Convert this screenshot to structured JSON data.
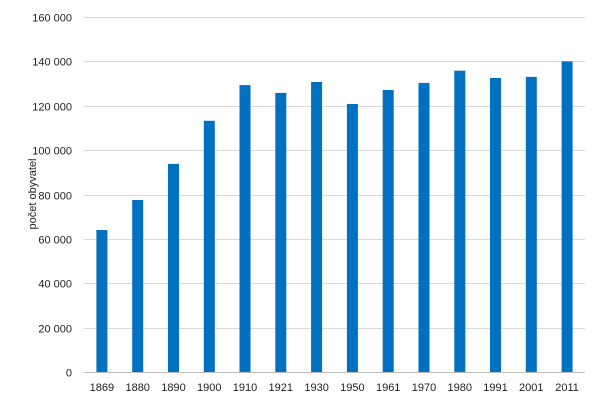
{
  "chart_data": {
    "type": "bar",
    "title": "",
    "xlabel": "",
    "ylabel": "počet obyvatel",
    "categories": [
      "1869",
      "1880",
      "1890",
      "1900",
      "1910",
      "1921",
      "1930",
      "1950",
      "1961",
      "1970",
      "1980",
      "1991",
      "2001",
      "2011"
    ],
    "values": [
      64000,
      77500,
      93800,
      113200,
      129300,
      125800,
      130700,
      120800,
      127100,
      130300,
      135800,
      132500,
      133000,
      140000
    ],
    "ylim": [
      0,
      160000
    ],
    "yticks": [
      0,
      20000,
      40000,
      60000,
      80000,
      100000,
      120000,
      140000,
      160000
    ],
    "ytick_labels": [
      "0",
      "20 000",
      "40 000",
      "60 000",
      "80 000",
      "100 000",
      "120 000",
      "140 000",
      "160 000"
    ],
    "grid": true,
    "legend": "none",
    "colors": {
      "bar": "#0070c0",
      "grid": "#d9d9d9"
    }
  }
}
